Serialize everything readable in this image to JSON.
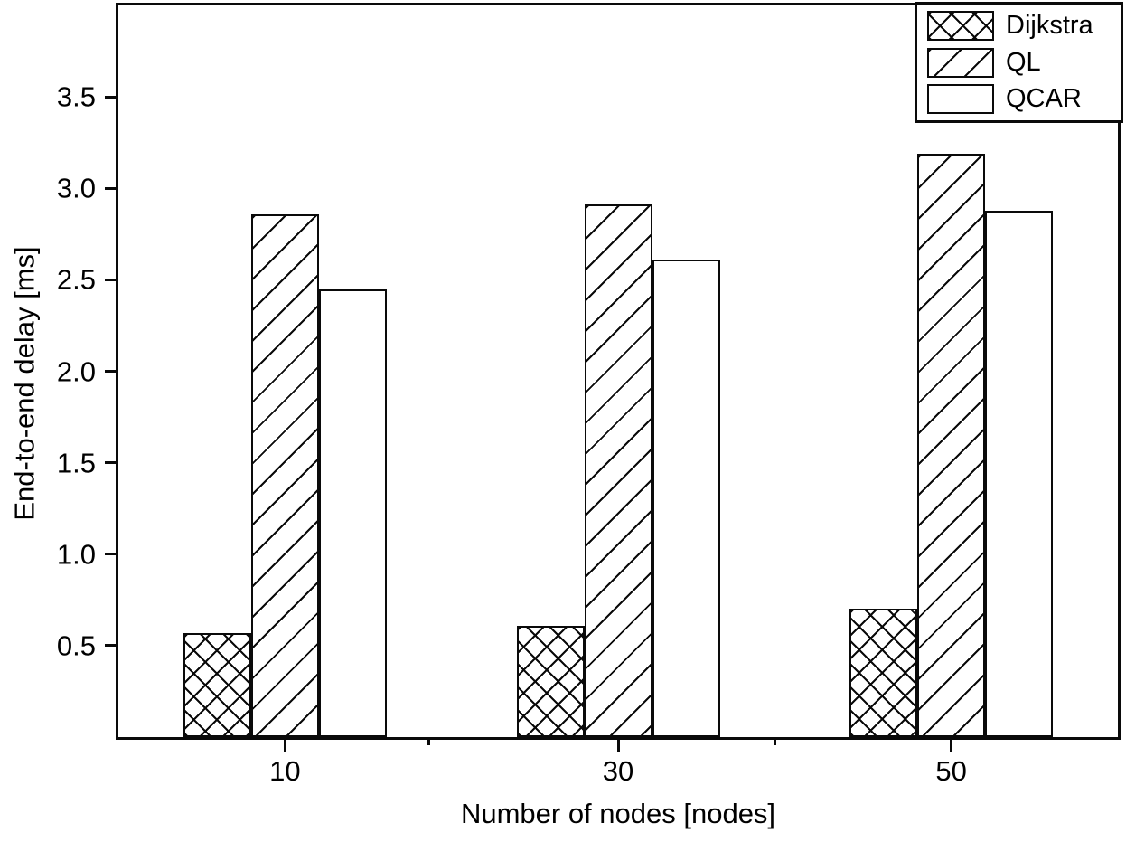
{
  "chart_data": {
    "type": "bar",
    "title": "",
    "xlabel": "Number of nodes [nodes]",
    "ylabel": "End-to-end delay [ms]",
    "categories": [
      "10",
      "30",
      "50"
    ],
    "series": [
      {
        "name": "Dijkstra",
        "hatch": "crosshatch",
        "values": [
          0.57,
          0.61,
          0.7
        ]
      },
      {
        "name": "QL",
        "hatch": "diagonal",
        "values": [
          2.86,
          2.91,
          3.19
        ]
      },
      {
        "name": "QCAR",
        "hatch": "none",
        "values": [
          2.45,
          2.61,
          2.88
        ]
      }
    ],
    "ylim": [
      0,
      4.0
    ],
    "yticks": [
      0.5,
      1.0,
      1.5,
      2.0,
      2.5,
      3.0,
      3.5
    ],
    "ytick_labels": [
      "0.5",
      "1.0",
      "1.5",
      "2.0",
      "2.5",
      "3.0",
      "3.5"
    ],
    "legend_position": "top-right",
    "grid": false,
    "bar_fill": "#ffffff",
    "line_color": "#0a0a0a",
    "background_color": "#ffffff"
  },
  "legend": {
    "items": [
      {
        "label": "Dijkstra"
      },
      {
        "label": "QL"
      },
      {
        "label": "QCAR"
      }
    ]
  }
}
